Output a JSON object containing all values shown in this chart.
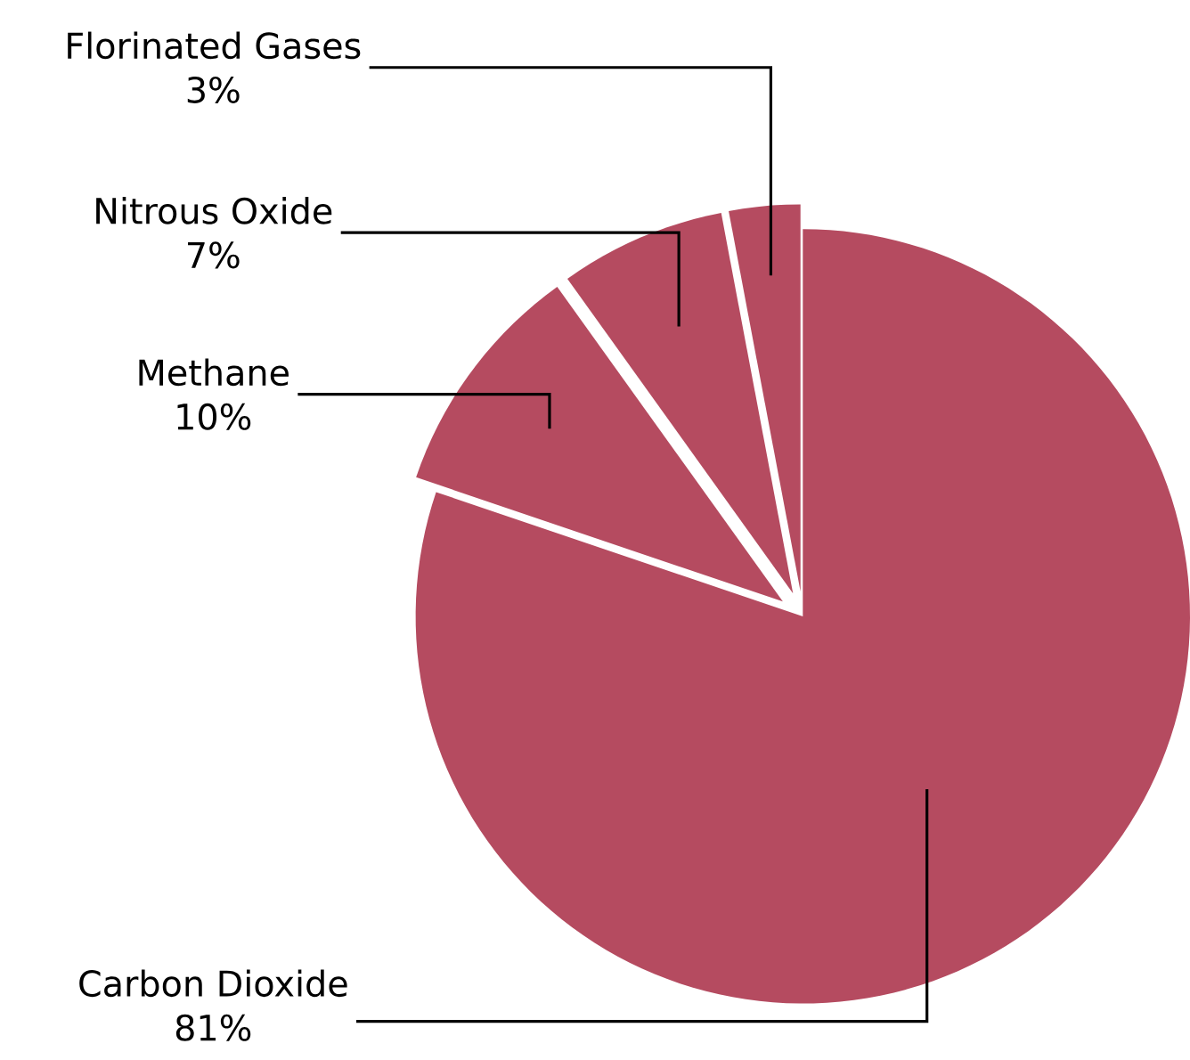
{
  "chart_data": {
    "type": "pie",
    "categories": [
      "Carbon Dioxide",
      "Methane",
      "Nitrous Oxide",
      "Florinated Gases"
    ],
    "values": [
      81,
      10,
      7,
      3
    ],
    "value_labels": [
      "81%",
      "10%",
      "7%",
      "3%"
    ],
    "colors": [
      "#b54b60",
      "#b54b60",
      "#b54b60",
      "#b54b60"
    ]
  }
}
